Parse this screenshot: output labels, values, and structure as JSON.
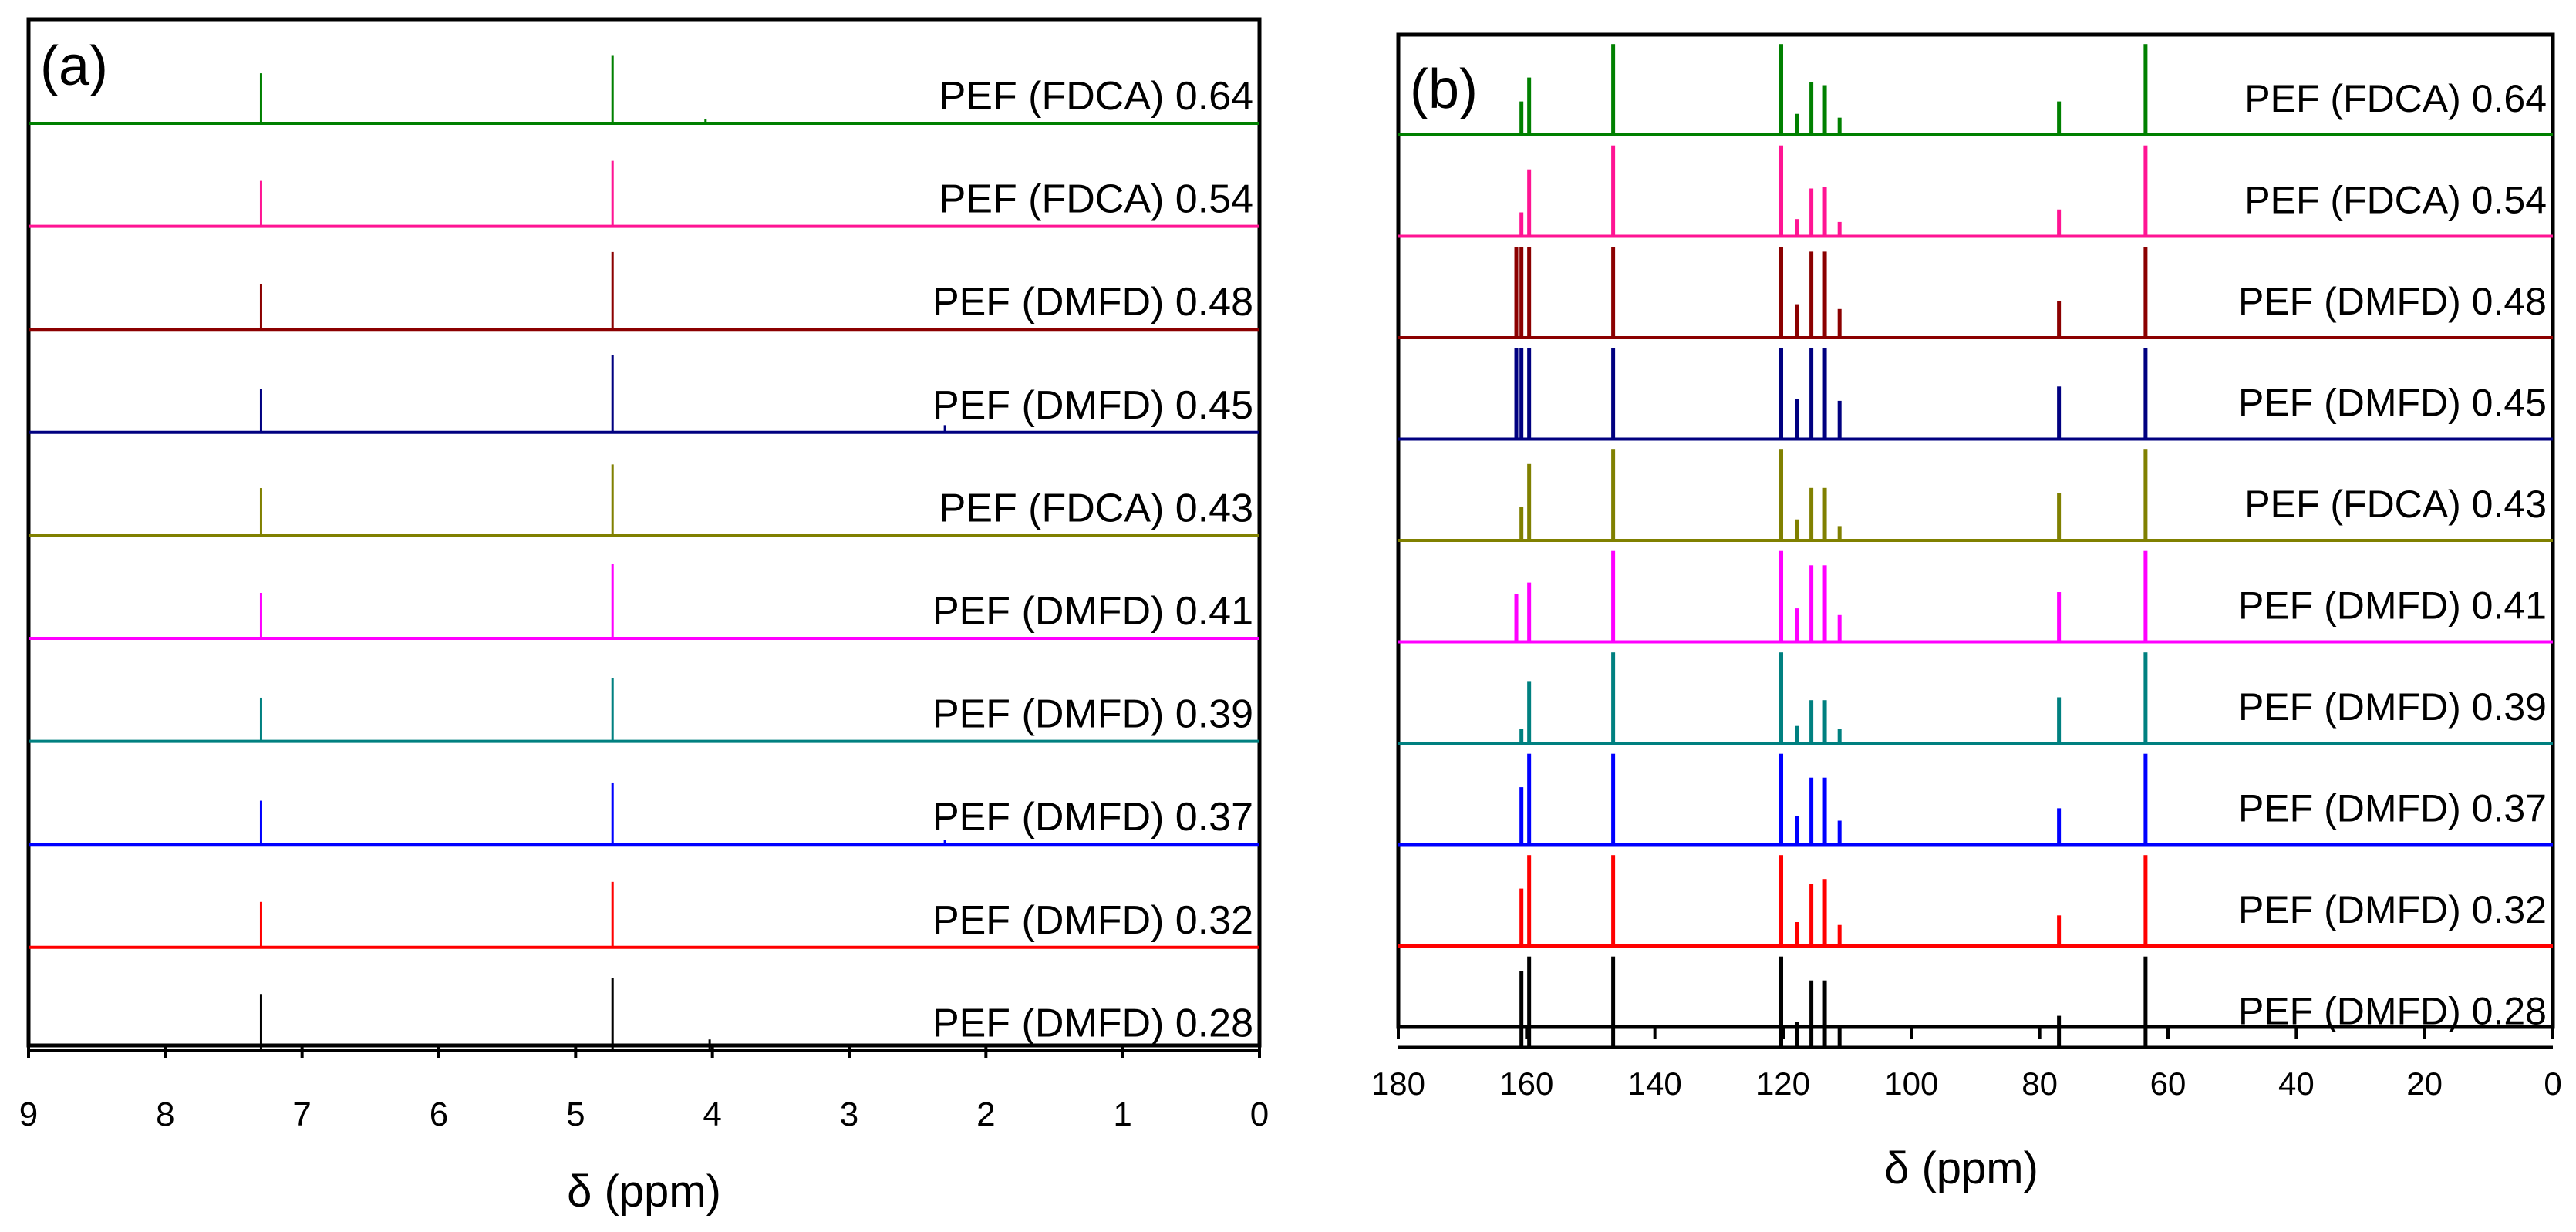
{
  "chart_data": [
    {
      "panel": "(a)",
      "type": "line",
      "title": "",
      "xlabel": "δ (ppm)",
      "ylabel": "",
      "xlim": [
        9,
        0
      ],
      "xticks": [
        9,
        8,
        7,
        6,
        5,
        4,
        3,
        2,
        1,
        0
      ],
      "x_reversed": true,
      "grid": false,
      "series": [
        {
          "name": "PEF (FDCA) 0.64",
          "color": "#008000",
          "peaks": [
            {
              "x": 7.3,
              "h": 0.55
            },
            {
              "x": 4.73,
              "h": 0.75
            },
            {
              "x": 4.05,
              "h": 0.05
            }
          ]
        },
        {
          "name": "PEF (FDCA) 0.54",
          "color": "#FF1493",
          "peaks": [
            {
              "x": 7.3,
              "h": 0.5
            },
            {
              "x": 4.73,
              "h": 0.72
            }
          ]
        },
        {
          "name": "PEF (DMFD) 0.48",
          "color": "#8B0000",
          "peaks": [
            {
              "x": 7.3,
              "h": 0.5
            },
            {
              "x": 4.73,
              "h": 0.85
            }
          ]
        },
        {
          "name": "PEF (DMFD) 0.45",
          "color": "#000080",
          "peaks": [
            {
              "x": 7.3,
              "h": 0.48
            },
            {
              "x": 4.73,
              "h": 0.85
            },
            {
              "x": 2.3,
              "h": 0.08
            }
          ]
        },
        {
          "name": "PEF (FDCA) 0.43",
          "color": "#808000",
          "peaks": [
            {
              "x": 7.3,
              "h": 0.52
            },
            {
              "x": 4.73,
              "h": 0.78
            }
          ]
        },
        {
          "name": "PEF (DMFD) 0.41",
          "color": "#FF00FF",
          "peaks": [
            {
              "x": 7.3,
              "h": 0.5
            },
            {
              "x": 4.73,
              "h": 0.82
            }
          ]
        },
        {
          "name": "PEF (DMFD) 0.39",
          "color": "#008080",
          "peaks": [
            {
              "x": 7.3,
              "h": 0.48
            },
            {
              "x": 4.73,
              "h": 0.7
            }
          ]
        },
        {
          "name": "PEF (DMFD) 0.37",
          "color": "#0000FF",
          "peaks": [
            {
              "x": 7.3,
              "h": 0.48
            },
            {
              "x": 4.73,
              "h": 0.68
            },
            {
              "x": 2.3,
              "h": 0.05
            }
          ]
        },
        {
          "name": "PEF (DMFD) 0.32",
          "color": "#FF0000",
          "peaks": [
            {
              "x": 7.3,
              "h": 0.5
            },
            {
              "x": 4.73,
              "h": 0.72
            }
          ]
        },
        {
          "name": "PEF (DMFD) 0.28",
          "color": "#000000",
          "peaks": [
            {
              "x": 7.3,
              "h": 0.62
            },
            {
              "x": 4.73,
              "h": 0.8
            },
            {
              "x": 4.02,
              "h": 0.12
            }
          ]
        }
      ]
    },
    {
      "panel": "(b)",
      "type": "line",
      "title": "",
      "xlabel": "δ (ppm)",
      "ylabel": "",
      "xlim": [
        180,
        0
      ],
      "xticks": [
        180,
        160,
        140,
        120,
        100,
        80,
        60,
        40,
        20,
        0
      ],
      "x_reversed": true,
      "grid": false,
      "series": [
        {
          "name": "PEF (FDCA) 0.64",
          "color": "#008000",
          "peaks": [
            {
              "x": 160.8,
              "h": 0.35
            },
            {
              "x": 159.6,
              "h": 0.6
            },
            {
              "x": 146.5,
              "h": 0.95
            },
            {
              "x": 120.3,
              "h": 0.95
            },
            {
              "x": 117.8,
              "h": 0.22
            },
            {
              "x": 115.6,
              "h": 0.55
            },
            {
              "x": 113.5,
              "h": 0.52
            },
            {
              "x": 111.2,
              "h": 0.18
            },
            {
              "x": 77.0,
              "h": 0.35
            },
            {
              "x": 63.5,
              "h": 0.95
            }
          ]
        },
        {
          "name": "PEF (FDCA) 0.54",
          "color": "#FF1493",
          "peaks": [
            {
              "x": 160.8,
              "h": 0.25
            },
            {
              "x": 159.6,
              "h": 0.7
            },
            {
              "x": 146.5,
              "h": 0.95
            },
            {
              "x": 120.3,
              "h": 0.95
            },
            {
              "x": 117.8,
              "h": 0.18
            },
            {
              "x": 115.6,
              "h": 0.5
            },
            {
              "x": 113.5,
              "h": 0.52
            },
            {
              "x": 111.2,
              "h": 0.15
            },
            {
              "x": 77.0,
              "h": 0.28
            },
            {
              "x": 63.5,
              "h": 0.95
            }
          ]
        },
        {
          "name": "PEF (DMFD) 0.48",
          "color": "#8B0000",
          "peaks": [
            {
              "x": 161.6,
              "h": 0.95
            },
            {
              "x": 160.8,
              "h": 0.95
            },
            {
              "x": 159.6,
              "h": 0.95
            },
            {
              "x": 146.5,
              "h": 0.95
            },
            {
              "x": 120.3,
              "h": 0.95
            },
            {
              "x": 117.8,
              "h": 0.35
            },
            {
              "x": 115.6,
              "h": 0.9
            },
            {
              "x": 113.5,
              "h": 0.9
            },
            {
              "x": 111.2,
              "h": 0.3
            },
            {
              "x": 77.0,
              "h": 0.38
            },
            {
              "x": 63.5,
              "h": 0.95
            }
          ]
        },
        {
          "name": "PEF (DMFD) 0.45",
          "color": "#000080",
          "peaks": [
            {
              "x": 161.6,
              "h": 0.95
            },
            {
              "x": 160.8,
              "h": 0.95
            },
            {
              "x": 159.6,
              "h": 0.95
            },
            {
              "x": 146.5,
              "h": 0.95
            },
            {
              "x": 120.3,
              "h": 0.95
            },
            {
              "x": 117.8,
              "h": 0.42
            },
            {
              "x": 115.6,
              "h": 0.95
            },
            {
              "x": 113.5,
              "h": 0.95
            },
            {
              "x": 111.2,
              "h": 0.4
            },
            {
              "x": 77.0,
              "h": 0.55
            },
            {
              "x": 63.5,
              "h": 0.95
            }
          ]
        },
        {
          "name": "PEF (FDCA) 0.43",
          "color": "#808000",
          "peaks": [
            {
              "x": 160.8,
              "h": 0.35
            },
            {
              "x": 159.6,
              "h": 0.8
            },
            {
              "x": 146.5,
              "h": 0.95
            },
            {
              "x": 120.3,
              "h": 0.95
            },
            {
              "x": 117.8,
              "h": 0.22
            },
            {
              "x": 115.6,
              "h": 0.55
            },
            {
              "x": 113.5,
              "h": 0.55
            },
            {
              "x": 111.2,
              "h": 0.15
            },
            {
              "x": 77.0,
              "h": 0.5
            },
            {
              "x": 63.5,
              "h": 0.95
            }
          ]
        },
        {
          "name": "PEF (DMFD) 0.41",
          "color": "#FF00FF",
          "peaks": [
            {
              "x": 161.6,
              "h": 0.5
            },
            {
              "x": 159.6,
              "h": 0.62
            },
            {
              "x": 146.5,
              "h": 0.95
            },
            {
              "x": 120.3,
              "h": 0.95
            },
            {
              "x": 117.8,
              "h": 0.35
            },
            {
              "x": 115.6,
              "h": 0.8
            },
            {
              "x": 113.5,
              "h": 0.8
            },
            {
              "x": 111.2,
              "h": 0.28
            },
            {
              "x": 77.0,
              "h": 0.52
            },
            {
              "x": 63.5,
              "h": 0.95
            }
          ]
        },
        {
          "name": "PEF (DMFD) 0.39",
          "color": "#008080",
          "peaks": [
            {
              "x": 160.8,
              "h": 0.15
            },
            {
              "x": 159.6,
              "h": 0.65
            },
            {
              "x": 146.5,
              "h": 0.95
            },
            {
              "x": 120.3,
              "h": 0.95
            },
            {
              "x": 117.8,
              "h": 0.18
            },
            {
              "x": 115.6,
              "h": 0.45
            },
            {
              "x": 113.5,
              "h": 0.45
            },
            {
              "x": 111.2,
              "h": 0.15
            },
            {
              "x": 77.0,
              "h": 0.48
            },
            {
              "x": 63.5,
              "h": 0.95
            }
          ]
        },
        {
          "name": "PEF (DMFD) 0.37",
          "color": "#0000FF",
          "peaks": [
            {
              "x": 160.8,
              "h": 0.6
            },
            {
              "x": 159.6,
              "h": 0.95
            },
            {
              "x": 146.5,
              "h": 0.95
            },
            {
              "x": 120.3,
              "h": 0.95
            },
            {
              "x": 117.8,
              "h": 0.3
            },
            {
              "x": 115.6,
              "h": 0.7
            },
            {
              "x": 113.5,
              "h": 0.7
            },
            {
              "x": 111.2,
              "h": 0.25
            },
            {
              "x": 77.0,
              "h": 0.38
            },
            {
              "x": 63.5,
              "h": 0.95
            }
          ]
        },
        {
          "name": "PEF (DMFD) 0.32",
          "color": "#FF0000",
          "peaks": [
            {
              "x": 160.8,
              "h": 0.6
            },
            {
              "x": 159.6,
              "h": 0.95
            },
            {
              "x": 146.5,
              "h": 0.95
            },
            {
              "x": 120.3,
              "h": 0.95
            },
            {
              "x": 117.8,
              "h": 0.25
            },
            {
              "x": 115.6,
              "h": 0.65
            },
            {
              "x": 113.5,
              "h": 0.7
            },
            {
              "x": 111.2,
              "h": 0.22
            },
            {
              "x": 77.0,
              "h": 0.32
            },
            {
              "x": 63.5,
              "h": 0.95
            }
          ]
        },
        {
          "name": "PEF (DMFD) 0.28",
          "color": "#000000",
          "peaks": [
            {
              "x": 160.8,
              "h": 0.8
            },
            {
              "x": 159.6,
              "h": 0.95
            },
            {
              "x": 146.5,
              "h": 0.95
            },
            {
              "x": 120.3,
              "h": 0.95
            },
            {
              "x": 117.8,
              "h": 0.27
            },
            {
              "x": 115.6,
              "h": 0.7
            },
            {
              "x": 113.5,
              "h": 0.7
            },
            {
              "x": 111.2,
              "h": 0.22
            },
            {
              "x": 77.0,
              "h": 0.33
            },
            {
              "x": 63.5,
              "h": 0.95
            }
          ]
        }
      ]
    }
  ]
}
